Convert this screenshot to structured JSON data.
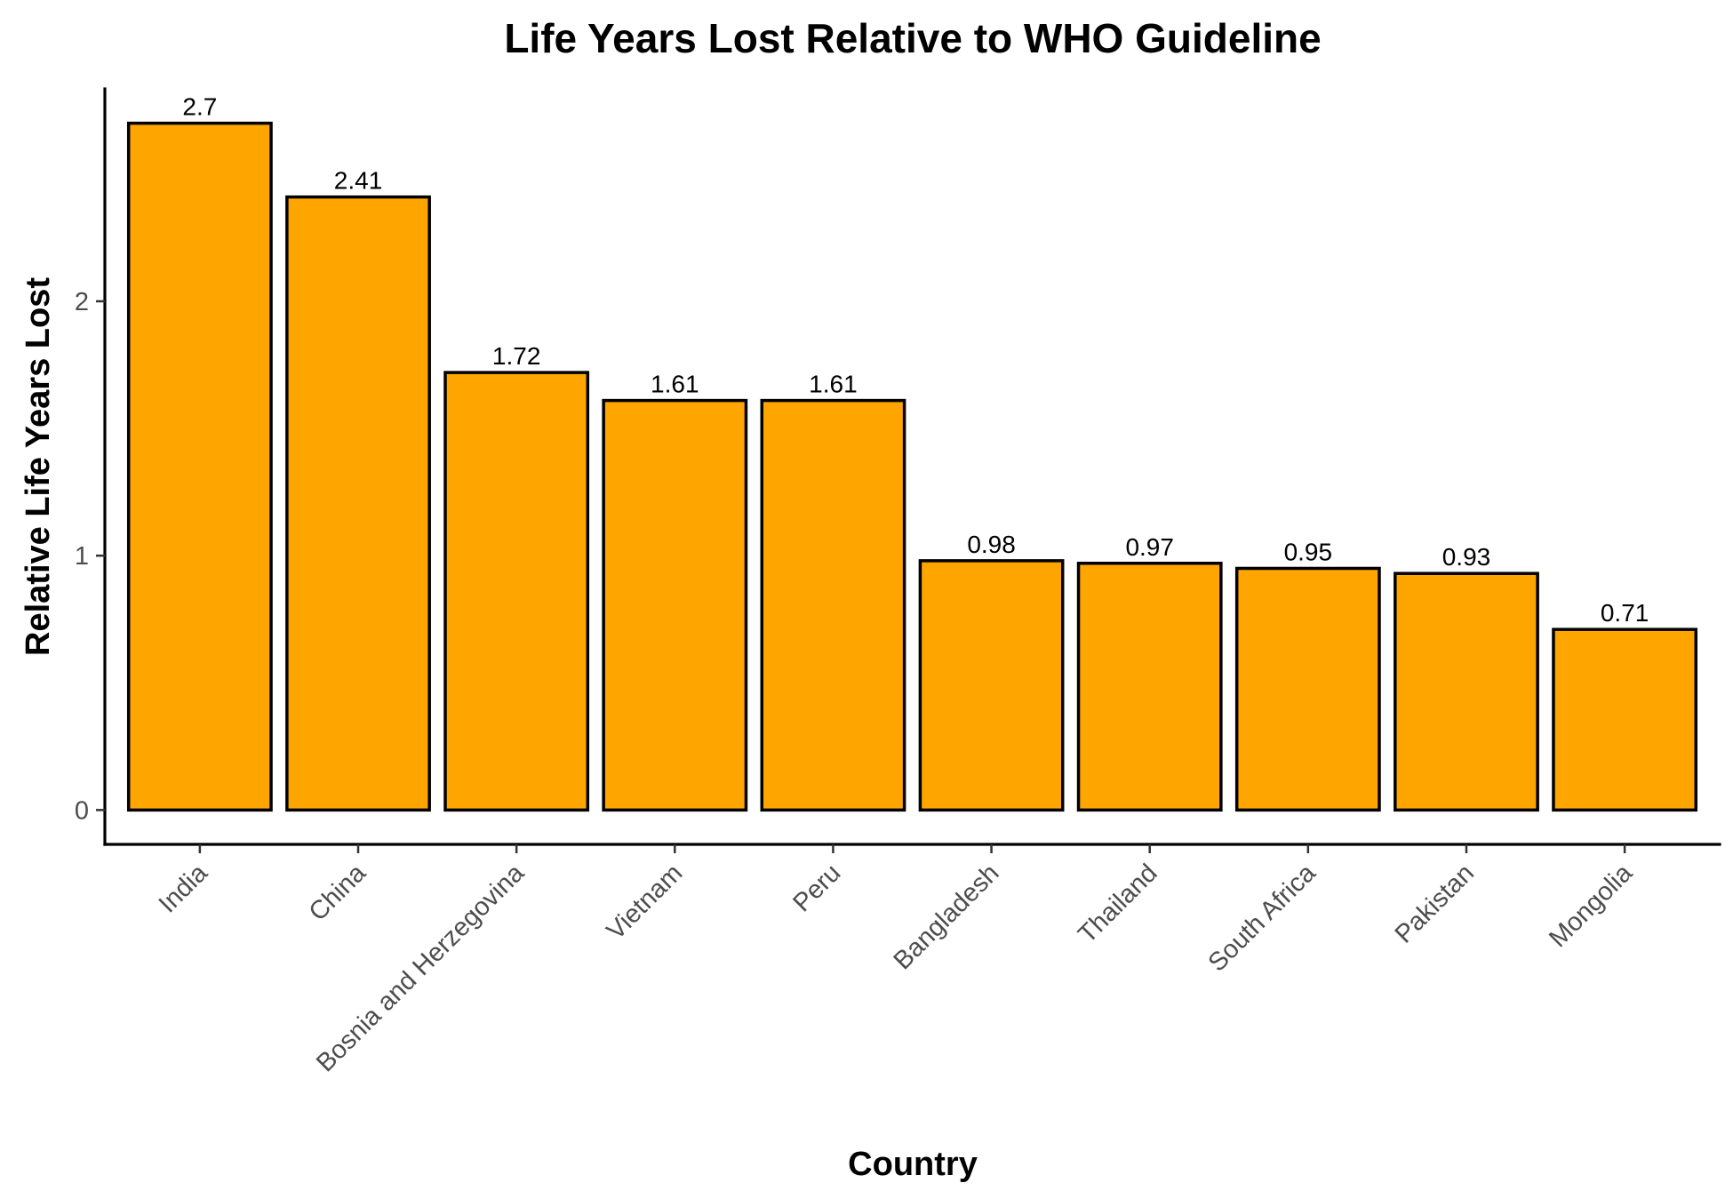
{
  "chart_data": {
    "type": "bar",
    "title": "Life Years Lost Relative to WHO Guideline",
    "xlabel": "Country",
    "ylabel": "Relative Life Years Lost",
    "categories": [
      "India",
      "China",
      "Bosnia and Herzegovina",
      "Vietnam",
      "Peru",
      "Bangladesh",
      "Thailand",
      "South Africa",
      "Pakistan",
      "Mongolia"
    ],
    "values": [
      2.7,
      2.41,
      1.72,
      1.61,
      1.61,
      0.98,
      0.97,
      0.95,
      0.93,
      0.71
    ],
    "data_labels": [
      "2.7",
      "2.41",
      "1.72",
      "1.61",
      "1.61",
      "0.98",
      "0.97",
      "0.95",
      "0.93",
      "0.71"
    ],
    "y_ticks": [
      0,
      1,
      2
    ],
    "y_tick_labels": [
      "0",
      "1",
      "2"
    ],
    "ylim": [
      -0.135,
      2.835
    ],
    "grid": false,
    "legend": "none",
    "colors": {
      "bar_fill": "#FFA500",
      "bar_stroke": "#000000"
    }
  }
}
